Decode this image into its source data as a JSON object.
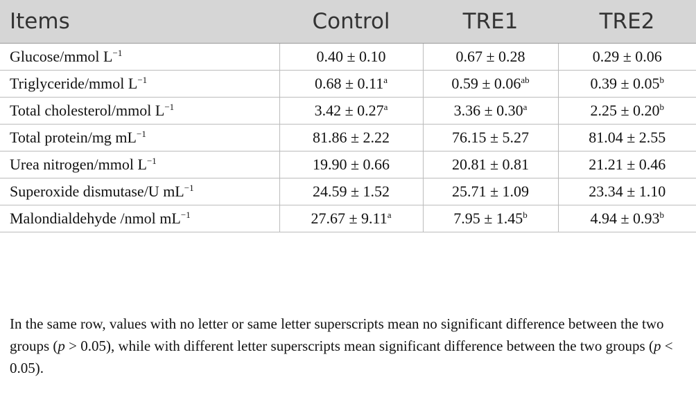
{
  "table": {
    "header": [
      "Items",
      "Control",
      "TRE1",
      "TRE2"
    ],
    "rows": [
      [
        {
          "text": "Glucose/mmol L",
          "sup": "−1"
        },
        {
          "text": "0.40 ± 0.10"
        },
        {
          "text": "0.67 ± 0.28"
        },
        {
          "text": "0.29 ± 0.06"
        }
      ],
      [
        {
          "text": "Triglyceride/mmol L",
          "sup": "−1"
        },
        {
          "text": "0.68 ± 0.11",
          "sup": "a"
        },
        {
          "text": "0.59 ± 0.06",
          "sup": "ab"
        },
        {
          "text": "0.39 ± 0.05",
          "sup": "b"
        }
      ],
      [
        {
          "text": "Total cholesterol/mmol L",
          "sup": "−1"
        },
        {
          "text": "3.42 ± 0.27",
          "sup": "a"
        },
        {
          "text": "3.36 ± 0.30",
          "sup": "a"
        },
        {
          "text": "2.25 ± 0.20",
          "sup": "b"
        }
      ],
      [
        {
          "text": "Total protein/mg mL",
          "sup": "−1"
        },
        {
          "text": "81.86 ± 2.22"
        },
        {
          "text": "76.15 ± 5.27"
        },
        {
          "text": "81.04 ± 2.55"
        }
      ],
      [
        {
          "text": "Urea nitrogen/mmol L",
          "sup": "−1"
        },
        {
          "text": "19.90 ± 0.66"
        },
        {
          "text": "20.81 ± 0.81"
        },
        {
          "text": "21.21 ± 0.46"
        }
      ],
      [
        {
          "text": "Superoxide dismutase/U mL",
          "sup": "−1"
        },
        {
          "text": "24.59 ± 1.52"
        },
        {
          "text": "25.71 ± 1.09"
        },
        {
          "text": "23.34 ± 1.10"
        }
      ],
      [
        {
          "text": "Malondialdehyde /nmol mL",
          "sup": "−1"
        },
        {
          "text": "27.67 ± 9.11",
          "sup": "a"
        },
        {
          "text": "7.95 ± 1.45",
          "sup": "b"
        },
        {
          "text": "4.94 ± 0.93",
          "sup": "b"
        }
      ]
    ]
  },
  "footnote": [
    {
      "text": "In the same row, values with no letter or same letter superscripts mean no significant difference between the two groups ("
    },
    {
      "text": "p",
      "italic": true
    },
    {
      "text": " > 0.05), while with different letter superscripts mean significant difference between the two groups ("
    },
    {
      "text": "p",
      "italic": true
    },
    {
      "text": " < 0.05)."
    }
  ]
}
